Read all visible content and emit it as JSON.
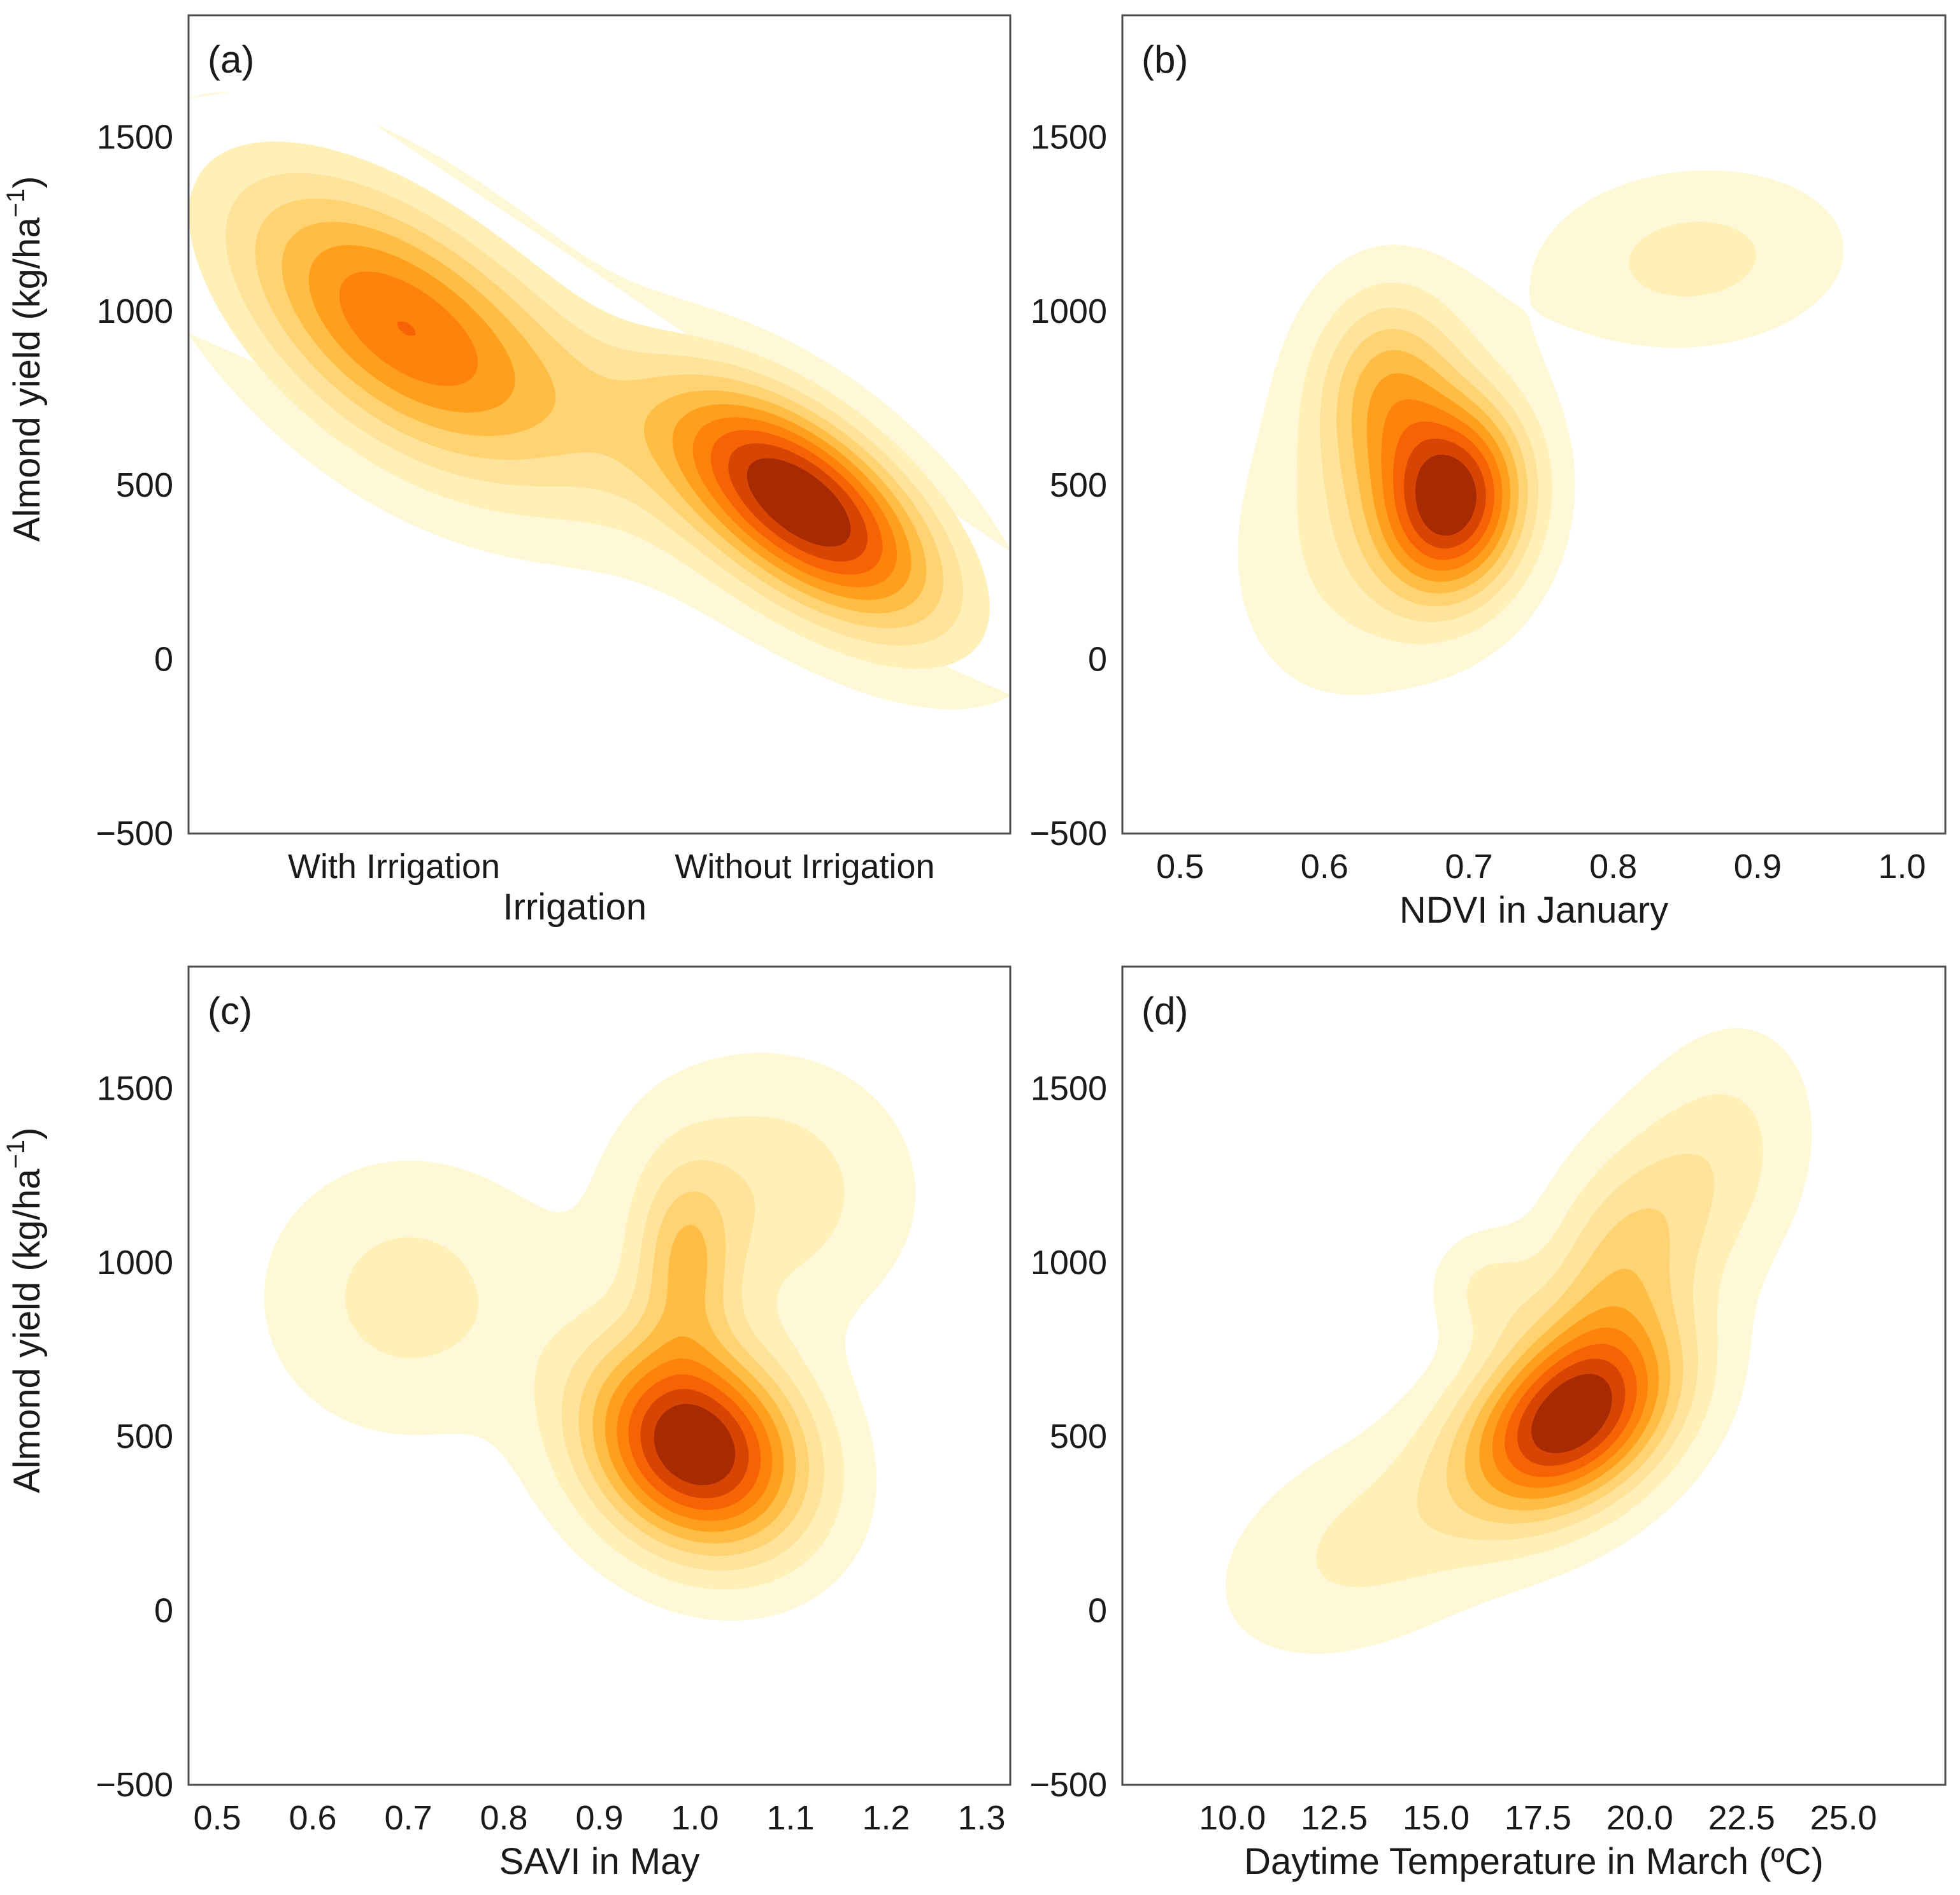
{
  "figure": {
    "level_colors": [
      "#fff8d6",
      "#fff0b8",
      "#ffe39a",
      "#ffd272",
      "#ffbd45",
      "#ff9f1c",
      "#ff820b",
      "#f76304",
      "#d74504",
      "#a82a02"
    ]
  },
  "chart_data": [
    {
      "panel": "(a)",
      "type": "kde_contour",
      "title": "",
      "xlabel": "Irrigation",
      "ylabel": "Almond yield (kg/ha",
      "ylabel_sup": "−1",
      "ylabel_close": ")",
      "x_categorical": true,
      "categories": [
        "With Irrigation",
        "Without Irrigation"
      ],
      "xlim": [
        -0.5,
        1.5
      ],
      "ylim": [
        -500,
        1850
      ],
      "yticks": [
        -500,
        0,
        500,
        1000,
        1500
      ],
      "ytick_labels": [
        "−500",
        "0",
        "500",
        "1000",
        "1500"
      ],
      "kernels": [
        {
          "x": 0.0,
          "y": 950,
          "sx": 0.28,
          "sy": 300,
          "rho": -0.55,
          "w": 1.0
        },
        {
          "x": 1.0,
          "y": 450,
          "sx": 0.22,
          "sy": 230,
          "rho": -0.6,
          "w": 1.55
        },
        {
          "x": 0.5,
          "y": 700,
          "sx": 0.55,
          "sy": 430,
          "rho": -0.85,
          "w": 0.35
        }
      ]
    },
    {
      "panel": "(b)",
      "type": "kde_contour",
      "title": "",
      "xlabel": "NDVI in January",
      "ylabel": "",
      "x_categorical": false,
      "xlim": [
        0.46,
        1.03
      ],
      "ylim": [
        -500,
        1850
      ],
      "xticks": [
        0.5,
        0.6,
        0.7,
        0.8,
        0.9,
        1.0
      ],
      "xtick_labels": [
        "0.5",
        "0.6",
        "0.7",
        "0.8",
        "0.9",
        "1.0"
      ],
      "yticks": [
        -500,
        0,
        500,
        1000,
        1500
      ],
      "ytick_labels": [
        "−500",
        "0",
        "500",
        "1000",
        "1500"
      ],
      "kernels": [
        {
          "x": 0.69,
          "y": 450,
          "sx": 0.035,
          "sy": 190,
          "rho": 0.1,
          "w": 1.6
        },
        {
          "x": 0.645,
          "y": 780,
          "sx": 0.035,
          "sy": 200,
          "rho": 0.0,
          "w": 0.75
        },
        {
          "x": 0.855,
          "y": 1150,
          "sx": 0.07,
          "sy": 170,
          "rho": 0.1,
          "w": 0.35
        },
        {
          "x": 0.63,
          "y": 400,
          "sx": 0.06,
          "sy": 330,
          "rho": 0.2,
          "w": 0.35
        }
      ]
    },
    {
      "panel": "(c)",
      "type": "kde_contour",
      "title": "",
      "xlabel": "SAVI in May",
      "ylabel": "Almond yield (kg/ha",
      "ylabel_sup": "−1",
      "ylabel_close": ")",
      "x_categorical": false,
      "xlim": [
        0.47,
        1.33
      ],
      "ylim": [
        -500,
        1850
      ],
      "xticks": [
        0.5,
        0.6,
        0.7,
        0.8,
        0.9,
        1.0,
        1.1,
        1.2,
        1.3
      ],
      "xtick_labels": [
        "0.5",
        "0.6",
        "0.7",
        "0.8",
        "0.9",
        "1.0",
        "1.1",
        "1.2",
        "1.3"
      ],
      "yticks": [
        -500,
        0,
        500,
        1000,
        1500
      ],
      "ytick_labels": [
        "−500",
        "0",
        "500",
        "1000",
        "1500"
      ],
      "kernels": [
        {
          "x": 1.0,
          "y": 470,
          "sx": 0.08,
          "sy": 210,
          "rho": -0.2,
          "w": 1.6
        },
        {
          "x": 0.99,
          "y": 1000,
          "sx": 0.035,
          "sy": 180,
          "rho": 0.0,
          "w": 0.5
        },
        {
          "x": 0.7,
          "y": 900,
          "sx": 0.1,
          "sy": 260,
          "rho": 0.0,
          "w": 0.3
        },
        {
          "x": 1.07,
          "y": 1200,
          "sx": 0.1,
          "sy": 250,
          "rho": 0.0,
          "w": 0.35
        }
      ]
    },
    {
      "panel": "(d)",
      "type": "kde_contour",
      "title": "",
      "xlabel": "Daytime Temperature in March (ºC)",
      "ylabel": "",
      "x_categorical": false,
      "xlim": [
        7.3,
        27.5
      ],
      "ylim": [
        -500,
        1850
      ],
      "xticks": [
        10.0,
        12.5,
        15.0,
        17.5,
        20.0,
        22.5,
        25.0
      ],
      "xtick_labels": [
        "10.0",
        "12.5",
        "15.0",
        "17.5",
        "20.0",
        "22.5",
        "25.0"
      ],
      "yticks": [
        -500,
        0,
        500,
        1000,
        1500
      ],
      "ytick_labels": [
        "−500",
        "0",
        "500",
        "1000",
        "1500"
      ],
      "kernels": [
        {
          "x": 18.3,
          "y": 550,
          "sx": 1.8,
          "sy": 190,
          "rho": 0.35,
          "w": 1.6
        },
        {
          "x": 19.5,
          "y": 1000,
          "sx": 1.4,
          "sy": 230,
          "rho": 0.3,
          "w": 0.55
        },
        {
          "x": 16.2,
          "y": 930,
          "sx": 0.9,
          "sy": 110,
          "rho": 0.0,
          "w": 0.25
        },
        {
          "x": 13.5,
          "y": 200,
          "sx": 2.5,
          "sy": 220,
          "rho": 0.4,
          "w": 0.3
        },
        {
          "x": 22.0,
          "y": 1300,
          "sx": 1.5,
          "sy": 250,
          "rho": 0.2,
          "w": 0.3
        }
      ]
    }
  ]
}
